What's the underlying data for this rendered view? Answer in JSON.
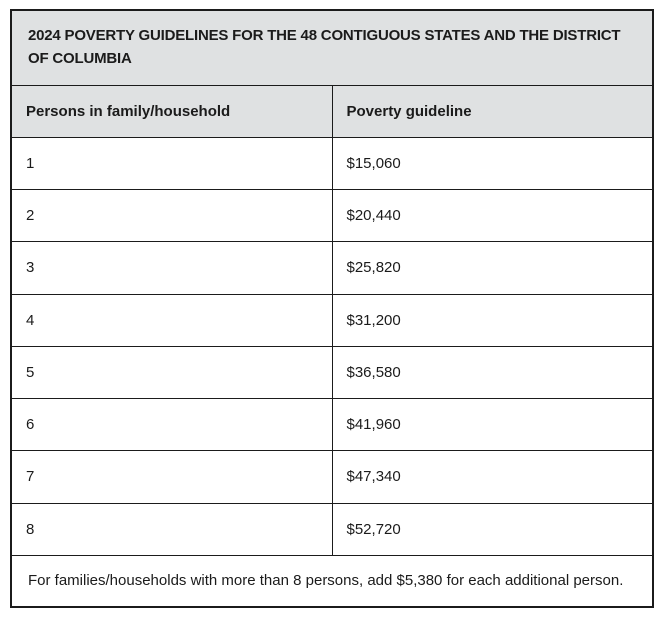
{
  "colors": {
    "page_bg": "#ffffff",
    "header_bg": "#dfe1e2",
    "border": "#1b1b1b",
    "text": "#1b1b1b"
  },
  "table": {
    "title": "2024 POVERTY GUIDELINES FOR THE 48 CONTIGUOUS STATES AND THE DISTRICT OF COLUMBIA",
    "columns": [
      "Persons in family/household",
      "Poverty guideline"
    ],
    "rows": [
      [
        "1",
        "$15,060"
      ],
      [
        "2",
        "$20,440"
      ],
      [
        "3",
        "$25,820"
      ],
      [
        "4",
        "$31,200"
      ],
      [
        "5",
        "$36,580"
      ],
      [
        "6",
        "$41,960"
      ],
      [
        "7",
        "$47,340"
      ],
      [
        "8",
        "$52,720"
      ]
    ],
    "footnote": "For families/households with more than 8 persons, add $5,380 for each additional person."
  }
}
